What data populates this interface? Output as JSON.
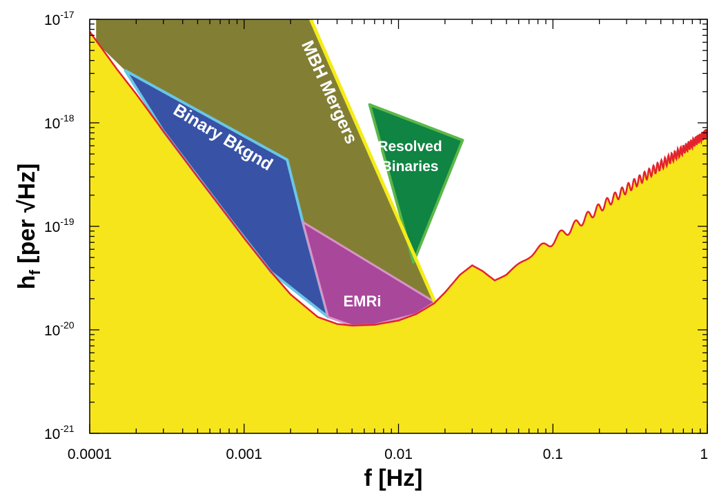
{
  "chart_data": {
    "type": "area",
    "title": "",
    "xlabel": "f [Hz]",
    "ylabel": "h_f [per √Hz]",
    "ylabel_main": "h",
    "ylabel_sub": "f",
    "ylabel_rest": " [per √Hz]",
    "xscale": "log",
    "yscale": "log",
    "xlim": [
      0.0001,
      1
    ],
    "ylim": [
      1e-21,
      1e-17
    ],
    "grid": false,
    "x_ticks": [
      {
        "value": 0.0001,
        "label": "0.0001"
      },
      {
        "value": 0.001,
        "label": "0.001"
      },
      {
        "value": 0.01,
        "label": "0.01"
      },
      {
        "value": 0.1,
        "label": "0.1"
      },
      {
        "value": 1,
        "label": "1"
      }
    ],
    "y_ticks": [
      {
        "value": 1e-17,
        "base": "10",
        "exp": "-17"
      },
      {
        "value": 1e-18,
        "base": "10",
        "exp": "-18"
      },
      {
        "value": 1e-19,
        "base": "10",
        "exp": "-19"
      },
      {
        "value": 1e-20,
        "base": "10",
        "exp": "-20"
      },
      {
        "value": 1e-21,
        "base": "10",
        "exp": "-21"
      }
    ],
    "colors": {
      "sensitivity_fill": "#f7e51c",
      "sensitivity_curve": "#e4222b",
      "mbh_fill": "#827f35",
      "mbh_edge": "#f5eb19",
      "resolved_fill": "#0f8443",
      "resolved_edge": "#5bb749",
      "binary_fill": "#3852a5",
      "binary_edge": "#6ac6e6",
      "emri_fill": "#a9479b",
      "emri_edge": "#d795c6",
      "label_text": "#ffffff"
    },
    "sensitivity_curve": {
      "name": "",
      "x": [
        0.0001,
        0.00015,
        0.0002,
        0.0003,
        0.0005,
        0.0008,
        0.001,
        0.0015,
        0.002,
        0.003,
        0.004,
        0.005,
        0.007,
        0.01,
        0.013,
        0.017,
        0.02,
        0.025,
        0.03,
        0.035,
        0.042,
        0.05,
        0.07,
        0.1,
        0.15,
        0.2,
        0.3,
        0.5,
        0.7,
        1.0
      ],
      "y": [
        7.6e-18,
        3.3e-18,
        1.9e-18,
        8.3e-19,
        3e-19,
        1.2e-19,
        7.7e-20,
        3.6e-20,
        2.2e-20,
        1.33e-20,
        1.14e-20,
        1.1e-20,
        1.12e-20,
        1.23e-20,
        1.42e-20,
        1.8e-20,
        2.3e-20,
        3.4e-20,
        4.2e-20,
        3.7e-20,
        3e-20,
        3.4e-20,
        5.2e-20,
        7.3e-20,
        1.1e-19,
        1.5e-19,
        2.3e-19,
        3.9e-19,
        5.5e-19,
        8e-19
      ],
      "oscillation_start_hz": 0.028
    },
    "regions": [
      {
        "name": "MBH Mergers",
        "label": "MBH Mergers",
        "polygon": [
          [
            0.00011,
            1e-17
          ],
          [
            0.0027,
            1e-17
          ],
          [
            0.0172,
            1.85e-20
          ],
          [
            0.0035,
            1.33e-20
          ],
          [
            0.00017,
            3.2e-18
          ],
          [
            0.00011,
            6e-18
          ]
        ],
        "edge": [
          [
            0.0027,
            1e-17
          ],
          [
            0.0172,
            1.85e-20
          ]
        ]
      },
      {
        "name": "Resolved Binaries",
        "label_lines": [
          "Resolved",
          "Binaries"
        ],
        "polygon": [
          [
            0.0065,
            1.5e-18
          ],
          [
            0.026,
            6.8e-19
          ],
          [
            0.0125,
            4.5e-20
          ]
        ]
      },
      {
        "name": "Binary Bkgnd",
        "label": "Binary Bkgnd",
        "polygon": [
          [
            0.00017,
            3.2e-18
          ],
          [
            0.0019,
            4.4e-19
          ],
          [
            0.0024,
            1.1e-19
          ],
          [
            0.0035,
            1.33e-20
          ],
          [
            0.0015,
            3.6e-20
          ],
          [
            0.0008,
            1.2e-19
          ],
          [
            0.0003,
            8.3e-19
          ]
        ]
      },
      {
        "name": "EMRi",
        "label": "EMRi",
        "polygon": [
          [
            0.0024,
            1.1e-19
          ],
          [
            0.0172,
            1.85e-20
          ],
          [
            0.013,
            1.42e-20
          ],
          [
            0.007,
            1.12e-20
          ],
          [
            0.005,
            1.1e-20
          ],
          [
            0.0035,
            1.33e-20
          ]
        ]
      }
    ]
  }
}
